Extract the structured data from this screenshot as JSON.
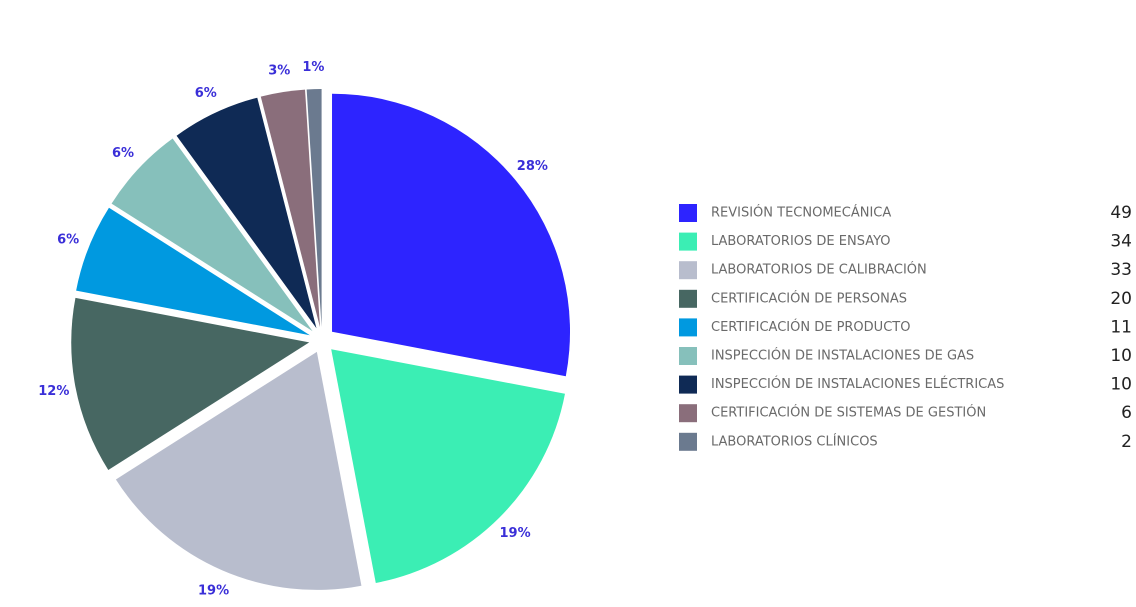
{
  "chart_data": {
    "type": "pie",
    "categories": [
      "REVISIÓN TECNOMECÁNICA",
      "LABORATORIOS DE ENSAYO",
      "LABORATORIOS DE CALIBRACIÓN",
      "CERTIFICACIÓN DE PERSONAS",
      "CERTIFICACIÓN DE PRODUCTO",
      "INSPECCIÓN DE INSTALACIONES DE GAS",
      "INSPECCIÓN DE INSTALACIONES ELÉCTRICAS",
      "CERTIFICACIÓN DE SISTEMAS DE GESTIÓN",
      "LABORATORIOS CLÍNICOS"
    ],
    "values": [
      28,
      19,
      19,
      12,
      6,
      6,
      6,
      3,
      1
    ],
    "counts": [
      49,
      34,
      33,
      20,
      11,
      10,
      10,
      6,
      2
    ],
    "colors": [
      "#2d24ff",
      "#3beeb4",
      "#b8bdcd",
      "#476762",
      "#0099e0",
      "#86c0bb",
      "#0f2a55",
      "#8a6e7b",
      "#6b7a8f"
    ],
    "legend": "right"
  }
}
